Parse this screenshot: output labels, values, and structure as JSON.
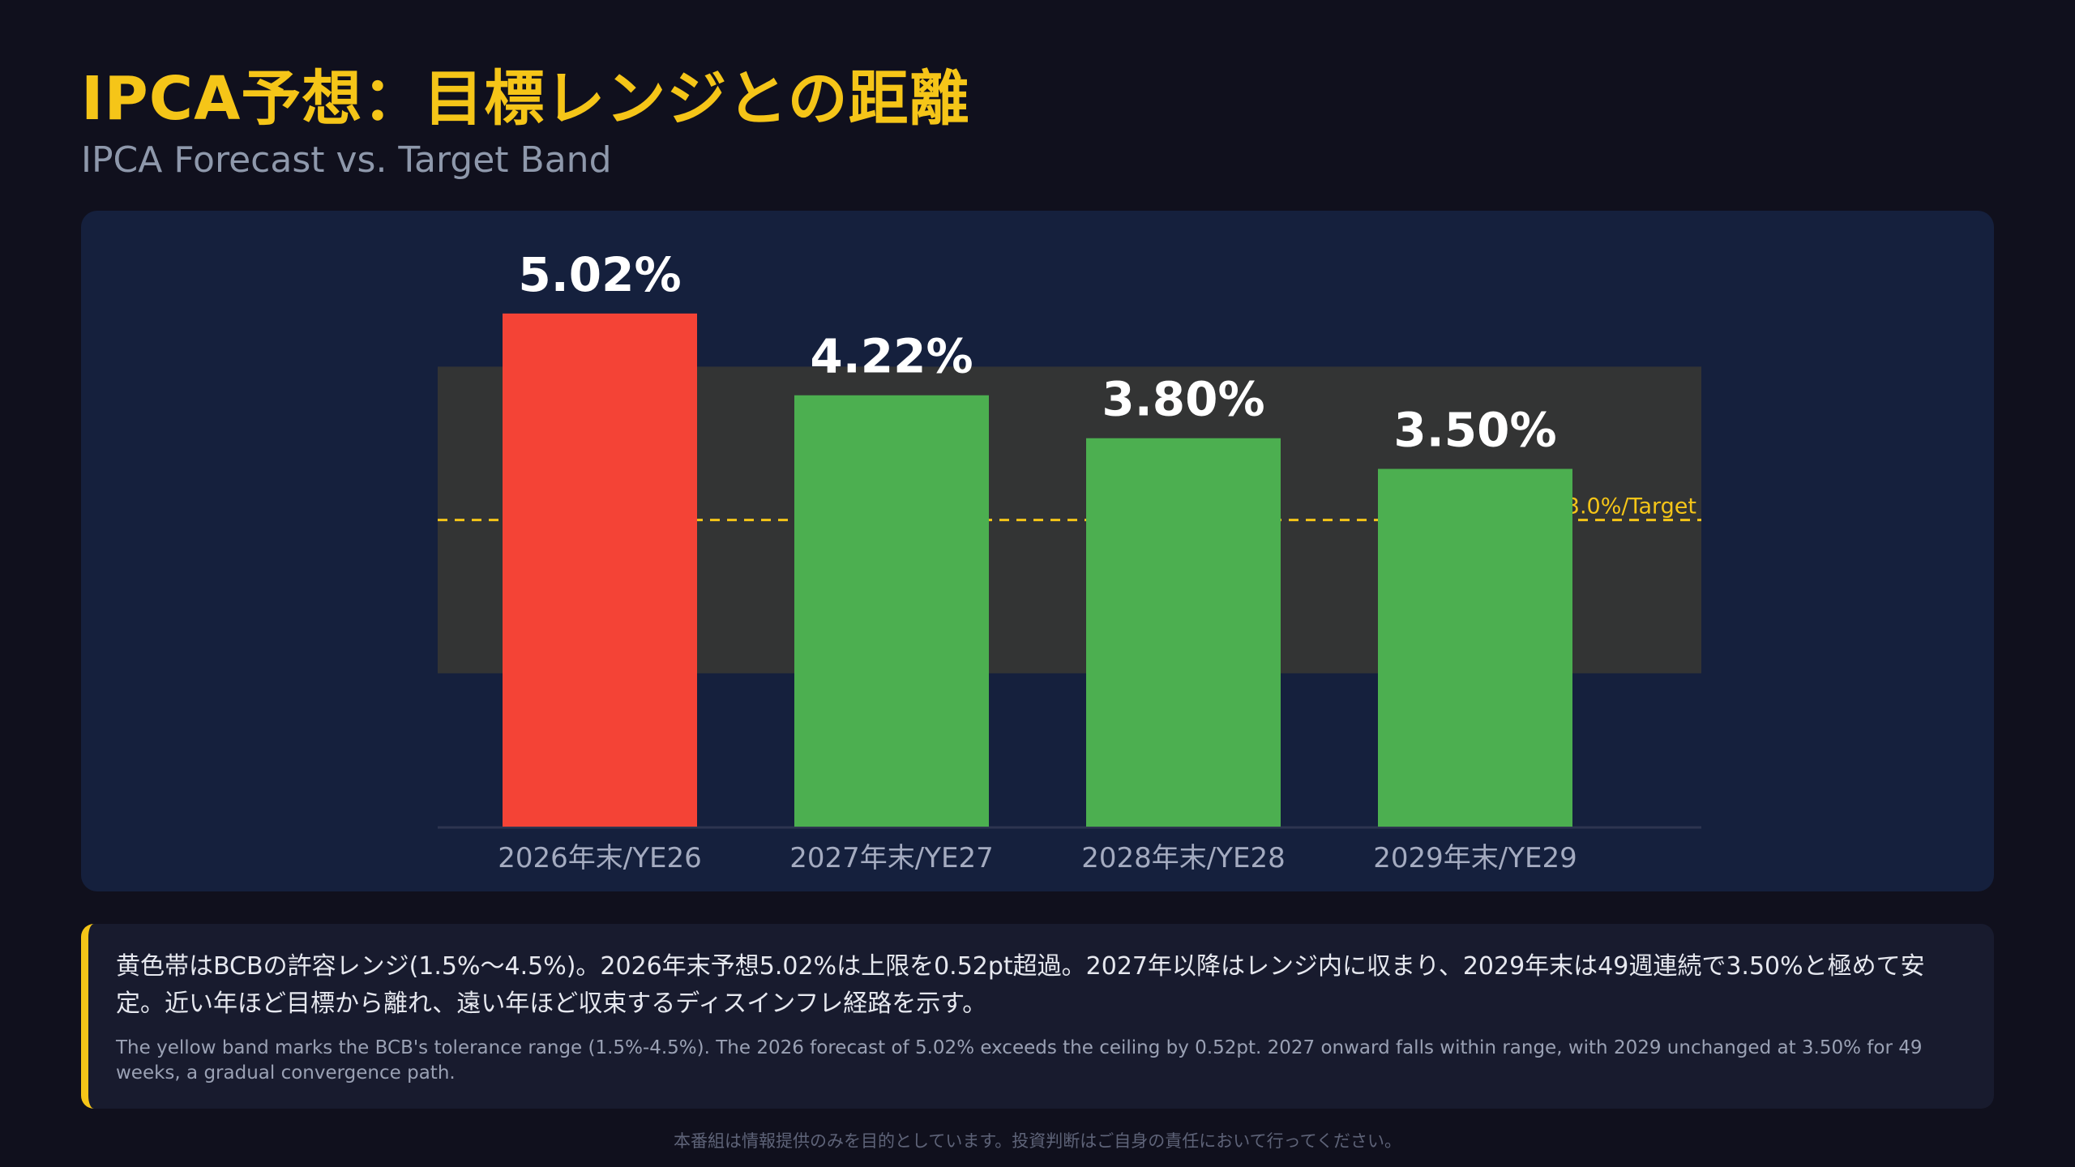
{
  "header": {
    "title": "IPCA予想：目標レンジとの距離",
    "subtitle": "IPCA Forecast vs. Target Band"
  },
  "colors": {
    "background": "#10101d",
    "chart_panel": "#15203d",
    "title": "#f5c518",
    "band": "#333434",
    "target_line": "#f5c518",
    "bar_above": "#f44336",
    "bar_within": "#4caf50",
    "value_label": "#ffffff",
    "axis_label": "#a4abc0"
  },
  "chart_data": {
    "type": "bar",
    "categories": [
      "2026年末/YE26",
      "2027年末/YE27",
      "2028年末/YE28",
      "2029年末/YE29"
    ],
    "values": [
      5.02,
      4.22,
      3.8,
      3.5
    ],
    "value_labels": [
      "5.02%",
      "4.22%",
      "3.80%",
      "3.50%"
    ],
    "bar_colors": [
      "#f44336",
      "#4caf50",
      "#4caf50",
      "#4caf50"
    ],
    "band": {
      "low": 1.5,
      "high": 4.5
    },
    "target": {
      "value": 3.0,
      "label": "3.0%/Target"
    },
    "ylim": [
      0,
      5.55
    ],
    "grid": false,
    "legend": false
  },
  "note": {
    "jp": "黄色帯はBCBの許容レンジ(1.5%〜4.5%)。2026年末予想5.02%は上限を0.52pt超過。2027年以降はレンジ内に収まり、2029年末は49週連続で3.50%と極めて安定。近い年ほど目標から離れ、遠い年ほど収束するディスインフレ経路を示す。",
    "en": "The yellow band marks the BCB's tolerance range (1.5%-4.5%). The 2026 forecast of 5.02% exceeds the ceiling by 0.52pt. 2027 onward falls within range, with 2029 unchanged at 3.50% for 49 weeks, a gradual convergence path."
  },
  "footer": {
    "disclaimer": "本番組は情報提供のみを目的としています。投資判断はご自身の責任において行ってください。"
  }
}
